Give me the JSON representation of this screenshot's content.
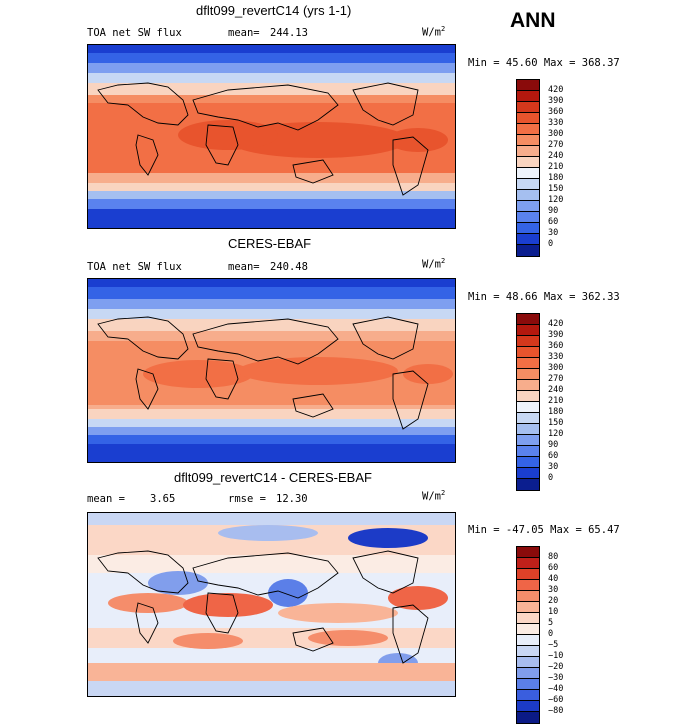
{
  "season": "ANN",
  "units_base": "W/m",
  "units_exp": "2",
  "panels": [
    {
      "title": "dflt099_revertC14 (yrs 1-1)",
      "left_label": "TOA net SW flux",
      "stat_label": "mean=",
      "stat_value": "244.13",
      "range_text": "Min =  45.60 Max = 368.37",
      "levels": [
        "420",
        "390",
        "360",
        "330",
        "300",
        "270",
        "240",
        "210",
        "180",
        "150",
        "120",
        "90",
        "60",
        "30",
        "0"
      ],
      "colors": [
        "#8a0b0b",
        "#b3180e",
        "#d4381c",
        "#e8542d",
        "#f26f45",
        "#f58d63",
        "#f7ad8c",
        "#f9d4c0",
        "#eef3fb",
        "#c7d8f4",
        "#a5bff0",
        "#7e9ff0",
        "#5a82ee",
        "#3463e6",
        "#1a3ed0",
        "#0b1e8f"
      ]
    },
    {
      "title": "CERES-EBAF",
      "left_label": "TOA net SW flux",
      "stat_label": "mean=",
      "stat_value": "240.48",
      "range_text": "Min =  48.66 Max = 362.33",
      "levels": [
        "420",
        "390",
        "360",
        "330",
        "300",
        "270",
        "240",
        "210",
        "180",
        "150",
        "120",
        "90",
        "60",
        "30",
        "0"
      ],
      "colors": [
        "#8a0b0b",
        "#b3180e",
        "#d4381c",
        "#e8542d",
        "#f26f45",
        "#f58d63",
        "#f7ad8c",
        "#f9d4c0",
        "#eef3fb",
        "#c7d8f4",
        "#a5bff0",
        "#7e9ff0",
        "#5a82ee",
        "#3463e6",
        "#1a3ed0",
        "#0b1e8f"
      ]
    },
    {
      "title": "dflt099_revertC14 - CERES-EBAF",
      "left_label": "mean =",
      "left_value": "3.65",
      "stat_label": "rmse =",
      "stat_value": "12.30",
      "range_text": "Min = -47.05 Max =  65.47",
      "levels": [
        "80",
        "60",
        "40",
        "30",
        "20",
        "10",
        "5",
        "0",
        "−5",
        "−10",
        "−20",
        "−30",
        "−40",
        "−60",
        "−80"
      ],
      "colors": [
        "#8a0b0b",
        "#c0201a",
        "#de4128",
        "#ef6547",
        "#f58d6b",
        "#f9b497",
        "#fbd7c6",
        "#fbece4",
        "#e8eefa",
        "#c9d7f4",
        "#a8bdef",
        "#819eec",
        "#5b7fe8",
        "#3a5ede",
        "#1c3bc7",
        "#0b1a86"
      ]
    }
  ]
}
